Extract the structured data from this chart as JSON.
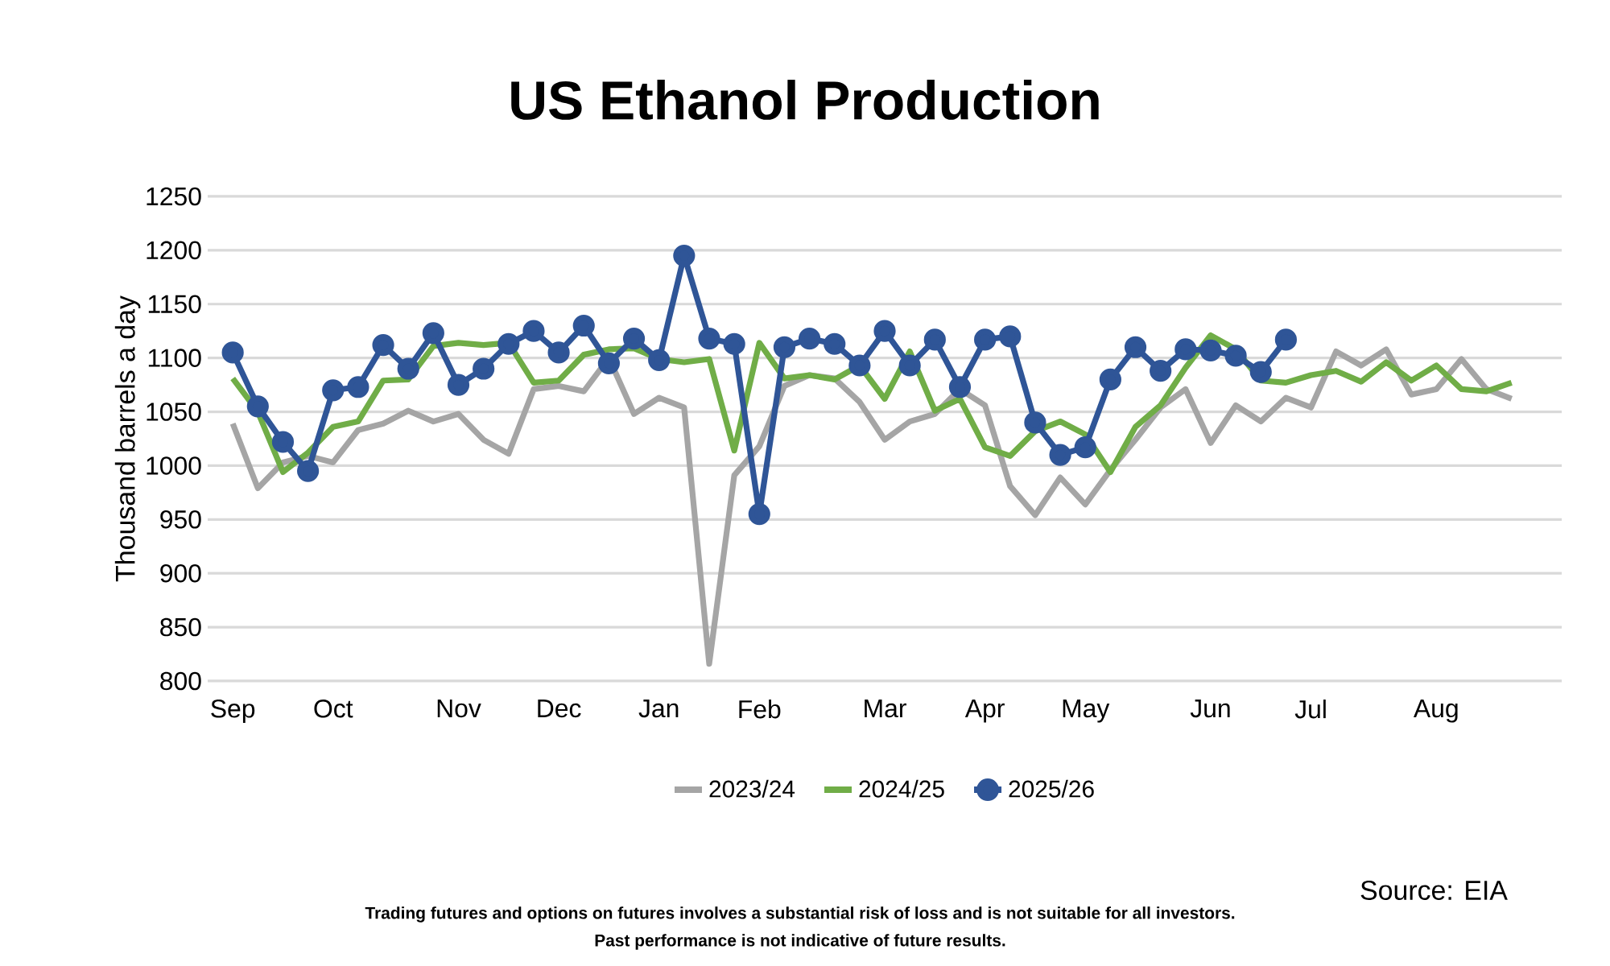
{
  "chart_data": {
    "type": "line",
    "title": "US Ethanol Production",
    "ylabel": "Thousand barrels a day",
    "categories": [
      "Sep",
      null,
      null,
      null,
      "Oct",
      null,
      null,
      null,
      null,
      "Nov",
      null,
      null,
      null,
      "Dec",
      null,
      null,
      null,
      "Jan",
      null,
      null,
      null,
      "Feb",
      null,
      null,
      null,
      null,
      "Mar",
      null,
      null,
      null,
      "Apr",
      null,
      null,
      null,
      "May",
      null,
      null,
      null,
      null,
      "Jun",
      null,
      null,
      null,
      "Jul",
      null,
      null,
      null,
      null,
      "Aug",
      null,
      null,
      null
    ],
    "ylim": [
      800,
      1250
    ],
    "yticks": [
      800,
      850,
      900,
      950,
      1000,
      1050,
      1100,
      1150,
      1200,
      1250
    ],
    "grid": "y",
    "legend": "bottom",
    "series": [
      {
        "name": "2023/24",
        "color": "#a5a5a5",
        "marker": "none",
        "values": [
          1039,
          979,
          1003,
          1009,
          1003,
          1033,
          1039,
          1051,
          1041,
          1048,
          1024,
          1011,
          1071,
          1074,
          1069,
          1100,
          1048,
          1063,
          1054,
          816,
          991,
          1018,
          1074,
          1084,
          1081,
          1059,
          1024,
          1041,
          1048,
          1071,
          1056,
          981,
          954,
          989,
          964,
          996,
          1024,
          1054,
          1071,
          1021,
          1056,
          1041,
          1063,
          1054,
          1106,
          1093,
          1108,
          1066,
          1071,
          1099,
          1071,
          1062
        ]
      },
      {
        "name": "2024/25",
        "color": "#70ad47",
        "marker": "none",
        "values": [
          1081,
          1050,
          994,
          1012,
          1036,
          1041,
          1079,
          1080,
          1111,
          1114,
          1112,
          1114,
          1077,
          1079,
          1103,
          1108,
          1109,
          1099,
          1096,
          1099,
          1014,
          1114,
          1081,
          1084,
          1080,
          1093,
          1062,
          1106,
          1051,
          1062,
          1017,
          1009,
          1032,
          1041,
          1029,
          994,
          1036,
          1056,
          1091,
          1121,
          1108,
          1079,
          1077,
          1084,
          1088,
          1078,
          1096,
          1079,
          1093,
          1071,
          1069,
          1077
        ]
      },
      {
        "name": "2025/26",
        "color": "#2f5597",
        "marker": "circle",
        "values": [
          1105,
          1055,
          1022,
          995,
          1070,
          1073,
          1112,
          1090,
          1123,
          1075,
          1090,
          1113,
          1125,
          1105,
          1130,
          1095,
          1118,
          1098,
          1195,
          1118,
          1113,
          955,
          1110,
          1118,
          1113,
          1093,
          1125,
          1093,
          1117,
          1073,
          1117,
          1120,
          1040,
          1010,
          1017,
          1080,
          1110,
          1088,
          1108,
          1107,
          1102,
          1087,
          1117,
          null,
          null,
          null,
          null,
          null,
          null,
          null,
          null,
          null
        ]
      }
    ],
    "annotations": [
      "Source: EIA",
      "Trading futures and options on futures involves a substantial risk of loss and is not suitable for all investors.",
      "Past performance is not indicative of future results."
    ]
  }
}
